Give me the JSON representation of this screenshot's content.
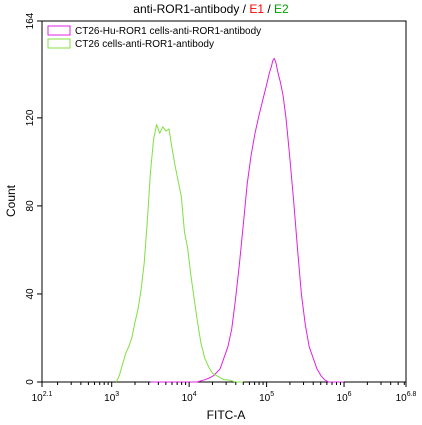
{
  "chart_data": {
    "type": "line",
    "title": {
      "main": "anti-ROR1-antibody",
      "sep1": " / ",
      "e1": "E1",
      "sep2": " / ",
      "e2": "E2",
      "e1_color": "#ff0000",
      "e2_color": "#00a000"
    },
    "xlabel": "FITC-A",
    "ylabel": "Count",
    "x_scale": "log",
    "xlim": [
      125.9,
      6309573
    ],
    "ylim": [
      0,
      164
    ],
    "x_ticks": [
      {
        "value": 125.9,
        "base": "10",
        "exp": "2.1"
      },
      {
        "value": 1000,
        "base": "10",
        "exp": "3"
      },
      {
        "value": 10000,
        "base": "10",
        "exp": "4"
      },
      {
        "value": 100000,
        "base": "10",
        "exp": "5"
      },
      {
        "value": 1000000,
        "base": "10",
        "exp": "6"
      },
      {
        "value": 6309573,
        "base": "10",
        "exp": "6.8"
      }
    ],
    "y_ticks": [
      {
        "value": 0,
        "label": "0"
      },
      {
        "value": 40,
        "label": "40"
      },
      {
        "value": 80,
        "label": "80"
      },
      {
        "value": 120,
        "label": "120"
      },
      {
        "value": 164,
        "label": "164"
      }
    ],
    "legend_position": "top-left",
    "grid": false,
    "series": [
      {
        "name": "CT26-Hu-ROR1 cells-anti-ROR1-antibody",
        "color": "#e020e0",
        "x": [
          3162,
          5012,
          7079,
          10000,
          12589,
          15849,
          18621,
          20893,
          25119,
          28184,
          31623,
          35481,
          39811,
          44668,
          50119,
          56234,
          63096,
          70795,
          79433,
          89125,
          100000,
          109648,
          114815,
          120226,
          125893,
          131826,
          141254,
          151356,
          163305,
          177828,
          199526,
          223872,
          251189,
          281838,
          316228,
          354813,
          398107,
          446684,
          501187,
          562341,
          630957,
          707946,
          794328,
          891251,
          1000000
        ],
        "y": [
          0,
          0,
          0,
          0,
          0,
          1,
          2,
          3,
          6,
          11,
          16,
          24,
          38,
          54,
          72,
          90,
          103,
          113,
          121,
          128,
          135,
          141,
          143,
          146,
          147,
          145,
          140,
          136,
          130,
          120,
          102,
          82,
          60,
          40,
          26,
          16,
          11,
          6,
          3,
          1,
          0,
          0,
          0,
          0,
          0
        ]
      },
      {
        "name": "CT26 cells-anti-ROR1-antibody",
        "color": "#80e040",
        "x": [
          1148,
          1259,
          1380,
          1514,
          1660,
          1820,
          1995,
          2188,
          2399,
          2630,
          2884,
          3162,
          3467,
          3802,
          4169,
          4571,
          5012,
          5495,
          6026,
          6607,
          7244,
          7943,
          8710,
          9550,
          10471,
          11482,
          12589,
          14125,
          15849,
          17783,
          19953,
          22387,
          25119,
          28184,
          31623,
          39811,
          50119
        ],
        "y": [
          0,
          3,
          8,
          13,
          16,
          20,
          27,
          33,
          42,
          54,
          73,
          95,
          110,
          117,
          113,
          116,
          114,
          115,
          106,
          98,
          91,
          84,
          68,
          61,
          49,
          39,
          29,
          18,
          11,
          7,
          4,
          3,
          2,
          1,
          1,
          0,
          0
        ]
      }
    ]
  }
}
